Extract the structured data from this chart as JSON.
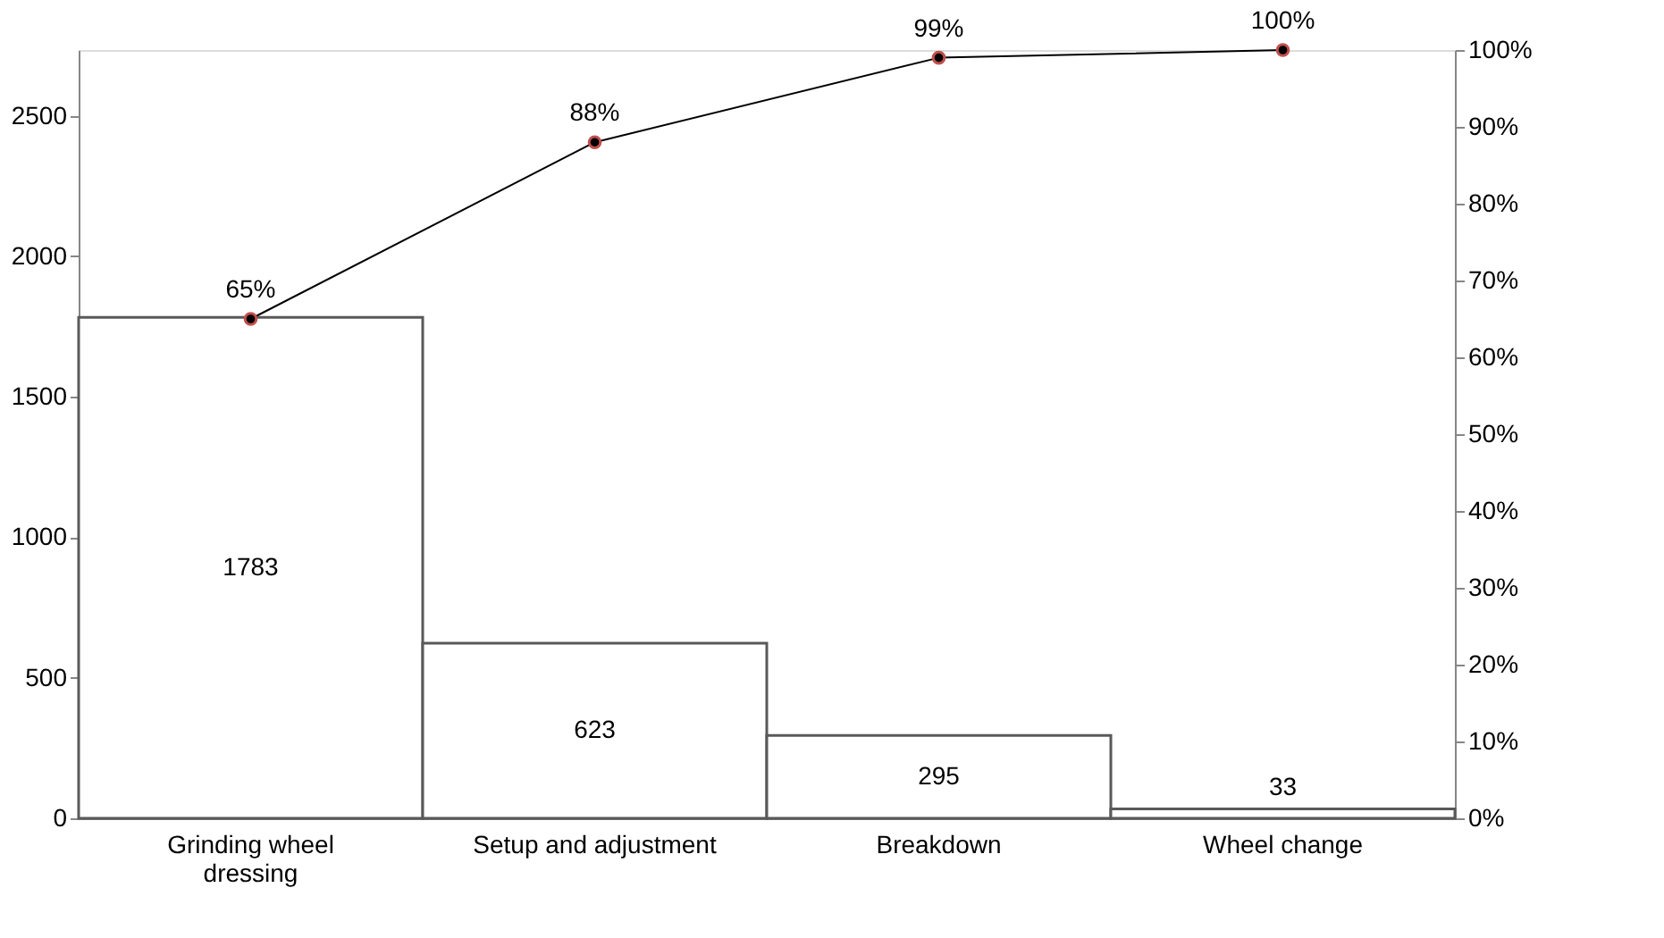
{
  "chart_data": {
    "type": "bar",
    "categories": [
      "Grinding wheel dressing",
      "Setup and adjustment",
      "Breakdown",
      "Wheel change"
    ],
    "series": [
      {
        "color": "#ffffff",
        "values": [
          1783,
          623,
          295,
          33
        ],
        "data_labels": true
      },
      {
        "type": "line",
        "axis": "y2",
        "color": "#000000",
        "values": [
          65,
          88,
          99,
          100
        ],
        "value_labels": [
          "65%",
          "88%",
          "99%",
          "100%"
        ],
        "marker": "circle"
      }
    ],
    "ylim": [
      0,
      2734
    ],
    "yticks": [
      0,
      500,
      1000,
      1500,
      2000,
      2500
    ],
    "y2lim": [
      0,
      100
    ],
    "y2ticks": [
      {
        "value": 0,
        "label": "0%"
      },
      {
        "value": 10,
        "label": "10%"
      },
      {
        "value": 20,
        "label": "20%"
      },
      {
        "value": 30,
        "label": "30%"
      },
      {
        "value": 40,
        "label": "40%"
      },
      {
        "value": 50,
        "label": "50%"
      },
      {
        "value": 60,
        "label": "60%"
      },
      {
        "value": 70,
        "label": "70%"
      },
      {
        "value": 80,
        "label": "80%"
      },
      {
        "value": 90,
        "label": "90%"
      },
      {
        "value": 100,
        "label": "100%"
      }
    ],
    "grid": false
  }
}
